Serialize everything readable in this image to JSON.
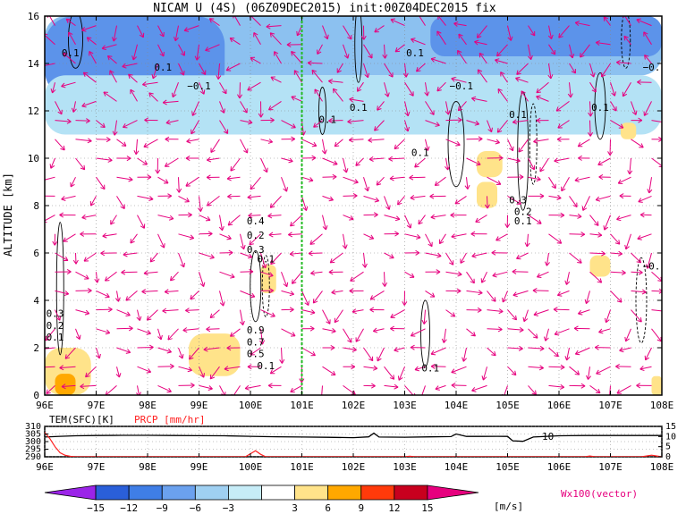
{
  "chart_data": [
    {
      "type": "heatmap",
      "title": "NICAM U (4S) (06Z09DEC2015) init:00Z04DEC2015 fix",
      "xlabel": "",
      "ylabel": "ALTITUDE [km]",
      "x_ticks": [
        "96E",
        "97E",
        "98E",
        "99E",
        "100E",
        "101E",
        "102E",
        "103E",
        "104E",
        "105E",
        "106E",
        "107E",
        "108E"
      ],
      "y_ticks": [
        "0",
        "2",
        "4",
        "6",
        "8",
        "10",
        "12",
        "14",
        "16"
      ],
      "xlim": [
        96,
        108
      ],
      "ylim": [
        0,
        16
      ],
      "vertical_marker_x": 101,
      "shading_regions": [
        {
          "level": -6,
          "x0": 96.0,
          "x1": 108.0,
          "y0": 13.5,
          "y1": 16.0
        },
        {
          "level": -9,
          "x0": 96.0,
          "x1": 99.5,
          "y0": 12.5,
          "y1": 16.0
        },
        {
          "level": -9,
          "x0": 103.5,
          "x1": 108.0,
          "y0": 14.3,
          "y1": 16.0
        },
        {
          "level": -3,
          "x0": 96.0,
          "x1": 108.0,
          "y0": 11.0,
          "y1": 13.5
        },
        {
          "level": 3,
          "x0": 96.0,
          "x1": 96.9,
          "y0": 0.0,
          "y1": 2.0
        },
        {
          "level": 6,
          "x0": 96.2,
          "x1": 96.6,
          "y0": 0.0,
          "y1": 0.9
        },
        {
          "level": 3,
          "x0": 98.8,
          "x1": 99.8,
          "y0": 0.8,
          "y1": 2.6
        },
        {
          "level": 3,
          "x0": 104.4,
          "x1": 104.9,
          "y0": 9.2,
          "y1": 10.3
        },
        {
          "level": 3,
          "x0": 104.4,
          "x1": 104.8,
          "y0": 7.9,
          "y1": 9.0
        },
        {
          "level": 3,
          "x0": 107.2,
          "x1": 107.5,
          "y0": 10.8,
          "y1": 11.5
        },
        {
          "level": 3,
          "x0": 106.6,
          "x1": 107.0,
          "y0": 5.0,
          "y1": 5.9
        },
        {
          "level": 3,
          "x0": 107.8,
          "x1": 108.0,
          "y0": 0.0,
          "y1": 0.8
        },
        {
          "level": 3,
          "x0": 100.2,
          "x1": 100.5,
          "y0": 4.3,
          "y1": 5.5
        }
      ],
      "contour_labels": [
        "0.1",
        "0.1",
        "−0.1",
        "0.1",
        "−0.1",
        "0.1",
        "0.1",
        "0.1",
        "−0.",
        "0.1",
        "0.1",
        "0.3",
        "0.2",
        "0.1",
        "0.3",
        "0.2",
        "0.4",
        "0.1",
        "−0.",
        "0.3",
        "0.2",
        "0.1",
        "0.9",
        "0.7",
        "0.5",
        "0.1",
        "0.1"
      ]
    },
    {
      "type": "line",
      "title": "",
      "xlabel": "",
      "x_ticks": [
        "96E",
        "97E",
        "98E",
        "99E",
        "100E",
        "101E",
        "102E",
        "103E",
        "104E",
        "105E",
        "106E",
        "107E",
        "108E"
      ],
      "xlim": [
        96,
        108
      ],
      "series": [
        {
          "name": "TEM(SFC)[K]",
          "color": "#000000",
          "ylim": [
            290,
            310
          ],
          "y_ticks": [
            "290",
            "295",
            "300",
            "305",
            "310"
          ],
          "x": [
            96.0,
            96.3,
            96.6,
            97.0,
            97.5,
            98.0,
            98.5,
            99.0,
            99.5,
            100.0,
            100.5,
            101.0,
            101.5,
            102.0,
            102.3,
            102.4,
            102.5,
            103.0,
            103.5,
            103.9,
            104.0,
            104.2,
            104.5,
            104.8,
            105.0,
            105.1,
            105.3,
            105.5,
            106.0,
            106.5,
            107.0,
            107.5,
            108.0
          ],
          "values": [
            303.0,
            303.5,
            303.8,
            304.0,
            304.1,
            304.1,
            304.0,
            303.9,
            303.8,
            303.5,
            303.2,
            303.0,
            302.8,
            302.6,
            303.1,
            305.5,
            303.0,
            302.9,
            303.1,
            303.3,
            305.0,
            303.4,
            303.4,
            303.5,
            303.4,
            300.5,
            300.2,
            303.0,
            303.8,
            304.0,
            304.0,
            304.0,
            304.0
          ]
        },
        {
          "name": "PRCP [mm/hr]",
          "color": "#ff0000",
          "ylim": [
            0,
            15
          ],
          "y_ticks": [
            "0",
            "5",
            "10",
            "15"
          ],
          "x": [
            96.0,
            96.1,
            96.2,
            96.3,
            96.4,
            96.5,
            96.6,
            97.0,
            99.9,
            100.0,
            100.1,
            100.2,
            100.3,
            103.0,
            103.1,
            103.2,
            106.5,
            106.6,
            106.7,
            107.6,
            107.7,
            107.8,
            107.9,
            108.0
          ],
          "values": [
            12.0,
            9.0,
            5.0,
            2.0,
            0.7,
            0.2,
            0.0,
            0.0,
            0.0,
            1.5,
            3.0,
            1.2,
            0.0,
            0.0,
            0.3,
            0.0,
            0.0,
            0.4,
            0.0,
            0.0,
            0.4,
            0.8,
            0.4,
            0.0
          ]
        }
      ],
      "annotation": "10"
    }
  ],
  "colorbar": {
    "ticks": [
      "−15",
      "−12",
      "−9",
      "−6",
      "−3",
      "3",
      "6",
      "9",
      "12",
      "15"
    ],
    "unit": "[m/s]",
    "colors": [
      "#9b24e8",
      "#2a5fd9",
      "#3f7ee6",
      "#6ba1ee",
      "#9fd0f2",
      "#c6ecf7",
      "#ffffff",
      "#ffe38a",
      "#ffa800",
      "#ff3a0a",
      "#c8001e",
      "#e6007e"
    ]
  },
  "vector_label": "Wx100(vector)",
  "tem_label": "TEM(SFC)[K]",
  "prcp_label": "PRCP [mm/hr]"
}
